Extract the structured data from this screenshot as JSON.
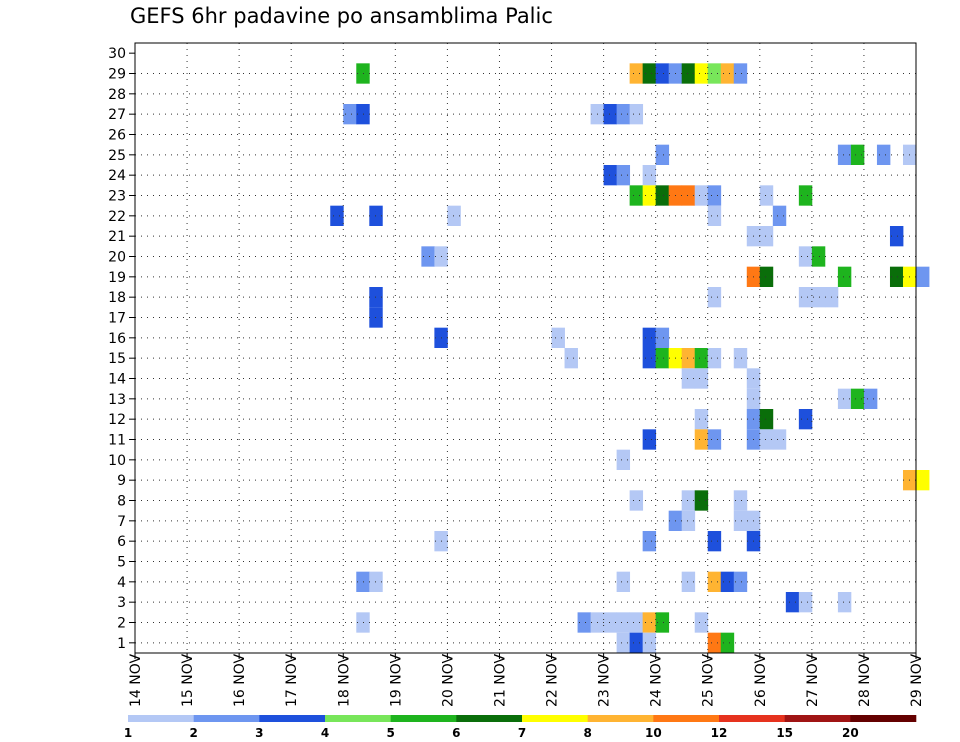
{
  "chart_data": {
    "type": "heatmap",
    "title": "GEFS 6hr padavine po ansamblima Palic",
    "xlabel": "",
    "ylabel": "",
    "x_ticks": [
      "14 NOV",
      "15 NOV",
      "16 NOV",
      "17 NOV",
      "18 NOV",
      "19 NOV",
      "20 NOV",
      "21 NOV",
      "22 NOV",
      "23 NOV",
      "24 NOV",
      "25 NOV",
      "26 NOV",
      "27 NOV",
      "28 NOV",
      "29 NOV"
    ],
    "y_ticks": [
      "1",
      "2",
      "3",
      "4",
      "5",
      "6",
      "7",
      "8",
      "9",
      "10",
      "11",
      "12",
      "13",
      "14",
      "15",
      "16",
      "17",
      "18",
      "19",
      "20",
      "21",
      "22",
      "23",
      "24",
      "25",
      "26",
      "27",
      "28",
      "29",
      "30"
    ],
    "x_range": [
      "14 NOV 00Z",
      "29 NOV 00Z"
    ],
    "time_step_hours": 6,
    "y_range": [
      0,
      30
    ],
    "grid": true,
    "legend_position": "bottom",
    "colorbar": {
      "labels": [
        "1",
        "2",
        "3",
        "4",
        "5",
        "6",
        "7",
        "8",
        "10",
        "12",
        "15",
        "20"
      ],
      "colors": [
        "#b4c8f5",
        "#6e96f0",
        "#1e50dc",
        "#78e65a",
        "#1eb41e",
        "#0a6e0a",
        "#ffff00",
        "#ffb432",
        "#ff7814",
        "#e6321e",
        "#a01414",
        "#640000"
      ]
    },
    "cells": [
      {
        "member": 30,
        "day": 26,
        "slot": 0,
        "value": 2
      },
      {
        "member": 30,
        "day": 26,
        "slot": 1,
        "value": 6
      },
      {
        "member": 30,
        "day": 26,
        "slot": 2,
        "value": 2
      },
      {
        "member": 30,
        "day": 26,
        "slot": 3,
        "value": 1
      },
      {
        "member": 30,
        "day": 28,
        "slot": 3,
        "value": 3
      },
      {
        "member": 28,
        "day": 18,
        "slot": 1,
        "value": 5
      },
      {
        "member": 28,
        "day": 23,
        "slot": 2,
        "value": 8
      },
      {
        "member": 28,
        "day": 23,
        "slot": 3,
        "value": 6
      },
      {
        "member": 28,
        "day": 24,
        "slot": 0,
        "value": 3
      },
      {
        "member": 28,
        "day": 24,
        "slot": 1,
        "value": 2
      },
      {
        "member": 28,
        "day": 24,
        "slot": 2,
        "value": 6
      },
      {
        "member": 28,
        "day": 24,
        "slot": 3,
        "value": 7
      },
      {
        "member": 28,
        "day": 25,
        "slot": 0,
        "value": 4
      },
      {
        "member": 28,
        "day": 25,
        "slot": 1,
        "value": 8
      },
      {
        "member": 28,
        "day": 25,
        "slot": 2,
        "value": 2
      },
      {
        "member": 26,
        "day": 18,
        "slot": 0,
        "value": 2
      },
      {
        "member": 26,
        "day": 18,
        "slot": 1,
        "value": 3
      },
      {
        "member": 26,
        "day": 22,
        "slot": 3,
        "value": 1
      },
      {
        "member": 26,
        "day": 23,
        "slot": 0,
        "value": 3
      },
      {
        "member": 26,
        "day": 23,
        "slot": 1,
        "value": 2
      },
      {
        "member": 26,
        "day": 23,
        "slot": 2,
        "value": 1
      },
      {
        "member": 24,
        "day": 24,
        "slot": 0,
        "value": 2
      },
      {
        "member": 24,
        "day": 27,
        "slot": 2,
        "value": 2
      },
      {
        "member": 24,
        "day": 27,
        "slot": 3,
        "value": 5
      },
      {
        "member": 24,
        "day": 28,
        "slot": 1,
        "value": 2
      },
      {
        "member": 24,
        "day": 28,
        "slot": 3,
        "value": 1
      },
      {
        "member": 23,
        "day": 23,
        "slot": 0,
        "value": 3
      },
      {
        "member": 23,
        "day": 23,
        "slot": 1,
        "value": 2
      },
      {
        "member": 23,
        "day": 23,
        "slot": 3,
        "value": 1
      },
      {
        "member": 22,
        "day": 23,
        "slot": 2,
        "value": 5
      },
      {
        "member": 22,
        "day": 23,
        "slot": 3,
        "value": 7
      },
      {
        "member": 22,
        "day": 24,
        "slot": 0,
        "value": 6
      },
      {
        "member": 22,
        "day": 24,
        "slot": 1,
        "value": 10
      },
      {
        "member": 22,
        "day": 24,
        "slot": 2,
        "value": 10
      },
      {
        "member": 22,
        "day": 24,
        "slot": 3,
        "value": 1
      },
      {
        "member": 22,
        "day": 25,
        "slot": 0,
        "value": 2
      },
      {
        "member": 22,
        "day": 26,
        "slot": 0,
        "value": 1
      },
      {
        "member": 22,
        "day": 26,
        "slot": 3,
        "value": 5
      },
      {
        "member": 21,
        "day": 17,
        "slot": 3,
        "value": 3
      },
      {
        "member": 21,
        "day": 18,
        "slot": 2,
        "value": 3
      },
      {
        "member": 21,
        "day": 20,
        "slot": 0,
        "value": 1
      },
      {
        "member": 21,
        "day": 25,
        "slot": 0,
        "value": 1
      },
      {
        "member": 21,
        "day": 26,
        "slot": 1,
        "value": 2
      },
      {
        "member": 20,
        "day": 25,
        "slot": 3,
        "value": 1
      },
      {
        "member": 20,
        "day": 26,
        "slot": 0,
        "value": 1
      },
      {
        "member": 20,
        "day": 28,
        "slot": 2,
        "value": 3
      },
      {
        "member": 19,
        "day": 19,
        "slot": 2,
        "value": 2
      },
      {
        "member": 19,
        "day": 19,
        "slot": 3,
        "value": 1
      },
      {
        "member": 19,
        "day": 26,
        "slot": 3,
        "value": 1
      },
      {
        "member": 19,
        "day": 27,
        "slot": 0,
        "value": 5
      },
      {
        "member": 18,
        "day": 25,
        "slot": 3,
        "value": 10
      },
      {
        "member": 18,
        "day": 26,
        "slot": 0,
        "value": 6
      },
      {
        "member": 18,
        "day": 27,
        "slot": 2,
        "value": 5
      },
      {
        "member": 18,
        "day": 28,
        "slot": 2,
        "value": 6
      },
      {
        "member": 18,
        "day": 28,
        "slot": 3,
        "value": 7
      },
      {
        "member": 18,
        "day": 29,
        "slot": 0,
        "value": 2
      },
      {
        "member": 17,
        "day": 18,
        "slot": 2,
        "value": 3
      },
      {
        "member": 17,
        "day": 25,
        "slot": 0,
        "value": 1
      },
      {
        "member": 17,
        "day": 26,
        "slot": 3,
        "value": 1
      },
      {
        "member": 17,
        "day": 27,
        "slot": 0,
        "value": 1
      },
      {
        "member": 17,
        "day": 27,
        "slot": 1,
        "value": 1
      },
      {
        "member": 16,
        "day": 18,
        "slot": 2,
        "value": 3
      },
      {
        "member": 15,
        "day": 19,
        "slot": 3,
        "value": 3
      },
      {
        "member": 15,
        "day": 22,
        "slot": 0,
        "value": 1
      },
      {
        "member": 15,
        "day": 23,
        "slot": 3,
        "value": 3
      },
      {
        "member": 15,
        "day": 24,
        "slot": 0,
        "value": 2
      },
      {
        "member": 14,
        "day": 22,
        "slot": 1,
        "value": 1
      },
      {
        "member": 14,
        "day": 23,
        "slot": 3,
        "value": 3
      },
      {
        "member": 14,
        "day": 24,
        "slot": 0,
        "value": 5
      },
      {
        "member": 14,
        "day": 24,
        "slot": 1,
        "value": 7
      },
      {
        "member": 14,
        "day": 24,
        "slot": 2,
        "value": 8
      },
      {
        "member": 14,
        "day": 24,
        "slot": 3,
        "value": 5
      },
      {
        "member": 14,
        "day": 25,
        "slot": 0,
        "value": 1
      },
      {
        "member": 14,
        "day": 25,
        "slot": 2,
        "value": 1
      },
      {
        "member": 13,
        "day": 24,
        "slot": 2,
        "value": 1
      },
      {
        "member": 13,
        "day": 24,
        "slot": 3,
        "value": 1
      },
      {
        "member": 13,
        "day": 25,
        "slot": 3,
        "value": 1
      },
      {
        "member": 12,
        "day": 25,
        "slot": 3,
        "value": 1
      },
      {
        "member": 12,
        "day": 27,
        "slot": 2,
        "value": 1
      },
      {
        "member": 12,
        "day": 27,
        "slot": 3,
        "value": 5
      },
      {
        "member": 12,
        "day": 28,
        "slot": 0,
        "value": 2
      },
      {
        "member": 11,
        "day": 24,
        "slot": 3,
        "value": 1
      },
      {
        "member": 11,
        "day": 25,
        "slot": 3,
        "value": 2
      },
      {
        "member": 11,
        "day": 26,
        "slot": 0,
        "value": 6
      },
      {
        "member": 11,
        "day": 26,
        "slot": 3,
        "value": 3
      },
      {
        "member": 10,
        "day": 23,
        "slot": 3,
        "value": 3
      },
      {
        "member": 10,
        "day": 24,
        "slot": 3,
        "value": 8
      },
      {
        "member": 10,
        "day": 25,
        "slot": 0,
        "value": 2
      },
      {
        "member": 10,
        "day": 25,
        "slot": 3,
        "value": 2
      },
      {
        "member": 10,
        "day": 26,
        "slot": 0,
        "value": 1
      },
      {
        "member": 10,
        "day": 26,
        "slot": 1,
        "value": 1
      },
      {
        "member": 9,
        "day": 23,
        "slot": 1,
        "value": 1
      },
      {
        "member": 8,
        "day": 28,
        "slot": 3,
        "value": 8
      },
      {
        "member": 8,
        "day": 29,
        "slot": 0,
        "value": 7
      },
      {
        "member": 7,
        "day": 23,
        "slot": 2,
        "value": 1
      },
      {
        "member": 7,
        "day": 24,
        "slot": 2,
        "value": 1
      },
      {
        "member": 7,
        "day": 24,
        "slot": 3,
        "value": 6
      },
      {
        "member": 7,
        "day": 25,
        "slot": 2,
        "value": 1
      },
      {
        "member": 6,
        "day": 24,
        "slot": 1,
        "value": 2
      },
      {
        "member": 6,
        "day": 24,
        "slot": 2,
        "value": 1
      },
      {
        "member": 6,
        "day": 25,
        "slot": 2,
        "value": 1
      },
      {
        "member": 6,
        "day": 25,
        "slot": 3,
        "value": 1
      },
      {
        "member": 5,
        "day": 19,
        "slot": 3,
        "value": 1
      },
      {
        "member": 5,
        "day": 23,
        "slot": 3,
        "value": 2
      },
      {
        "member": 5,
        "day": 25,
        "slot": 0,
        "value": 3
      },
      {
        "member": 5,
        "day": 25,
        "slot": 3,
        "value": 3
      },
      {
        "member": 3,
        "day": 18,
        "slot": 1,
        "value": 2
      },
      {
        "member": 3,
        "day": 18,
        "slot": 2,
        "value": 1
      },
      {
        "member": 3,
        "day": 23,
        "slot": 1,
        "value": 1
      },
      {
        "member": 3,
        "day": 24,
        "slot": 2,
        "value": 1
      },
      {
        "member": 3,
        "day": 25,
        "slot": 0,
        "value": 8
      },
      {
        "member": 3,
        "day": 25,
        "slot": 1,
        "value": 3
      },
      {
        "member": 3,
        "day": 25,
        "slot": 2,
        "value": 2
      },
      {
        "member": 2,
        "day": 26,
        "slot": 2,
        "value": 3
      },
      {
        "member": 2,
        "day": 26,
        "slot": 3,
        "value": 1
      },
      {
        "member": 2,
        "day": 27,
        "slot": 2,
        "value": 1
      },
      {
        "member": 1,
        "day": 18,
        "slot": 1,
        "value": 1
      },
      {
        "member": 1,
        "day": 22,
        "slot": 2,
        "value": 2
      },
      {
        "member": 1,
        "day": 22,
        "slot": 3,
        "value": 1
      },
      {
        "member": 1,
        "day": 23,
        "slot": 0,
        "value": 1
      },
      {
        "member": 1,
        "day": 23,
        "slot": 1,
        "value": 1
      },
      {
        "member": 1,
        "day": 23,
        "slot": 2,
        "value": 1
      },
      {
        "member": 1,
        "day": 23,
        "slot": 3,
        "value": 8
      },
      {
        "member": 1,
        "day": 24,
        "slot": 0,
        "value": 5
      },
      {
        "member": 1,
        "day": 24,
        "slot": 3,
        "value": 1
      },
      {
        "member": 0,
        "day": 23,
        "slot": 1,
        "value": 1
      },
      {
        "member": 0,
        "day": 23,
        "slot": 2,
        "value": 3
      },
      {
        "member": 0,
        "day": 23,
        "slot": 3,
        "value": 1
      },
      {
        "member": 0,
        "day": 25,
        "slot": 0,
        "value": 10
      },
      {
        "member": 0,
        "day": 25,
        "slot": 1,
        "value": 5
      }
    ]
  }
}
